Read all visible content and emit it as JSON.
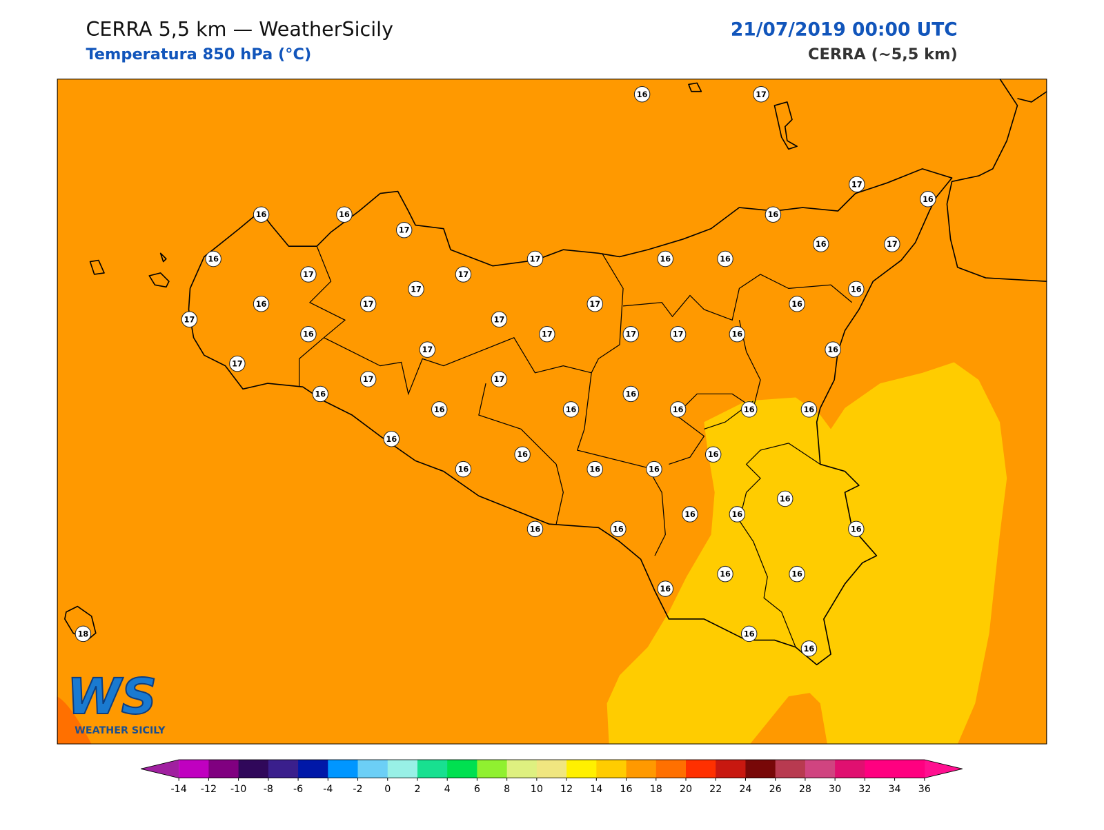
{
  "header": {
    "title": "CERRA 5,5 km — WeatherSicily",
    "subtitle": "Temperatura 850 hPa (°C)",
    "date": "21/07/2019 00:00 UTC",
    "model": "CERRA (~5,5 km)"
  },
  "stations": [
    16,
    17,
    16,
    16,
    17,
    17,
    16,
    16,
    16,
    17,
    17,
    17,
    16,
    16,
    16,
    17,
    17,
    16,
    17,
    17,
    16,
    16,
    17,
    16,
    17,
    17,
    17,
    17,
    16,
    17,
    16,
    17,
    17,
    17,
    16,
    16,
    16,
    16,
    16,
    16,
    16,
    16,
    16,
    16,
    16,
    16,
    16,
    16,
    16,
    16,
    16,
    16,
    16,
    16,
    16,
    16,
    16,
    16,
    18
  ],
  "logo": {
    "text": "WS",
    "caption": "WEATHER SICILY"
  },
  "colorbar": {
    "ticks": [
      -14,
      -12,
      -10,
      -8,
      -6,
      -4,
      -2,
      0,
      2,
      4,
      6,
      8,
      10,
      12,
      14,
      16,
      18,
      20,
      22,
      24,
      26,
      28,
      30,
      32,
      34,
      36
    ],
    "colors": [
      "#c000c0",
      "#800080",
      "#30085a",
      "#3a1f8c",
      "#0018a8",
      "#0096ff",
      "#6ccff6",
      "#98f0e6",
      "#18e090",
      "#00e050",
      "#90f030",
      "#def080",
      "#f0e680",
      "#fff000",
      "#ffcc00",
      "#ff9900",
      "#ff7000",
      "#ff3000",
      "#c81810",
      "#780808",
      "#b83a50",
      "#d04480",
      "#e01070",
      "#ff0080",
      "#ff0080"
    ],
    "extend_colors": [
      "#a020a0",
      "#ff1090"
    ]
  }
}
